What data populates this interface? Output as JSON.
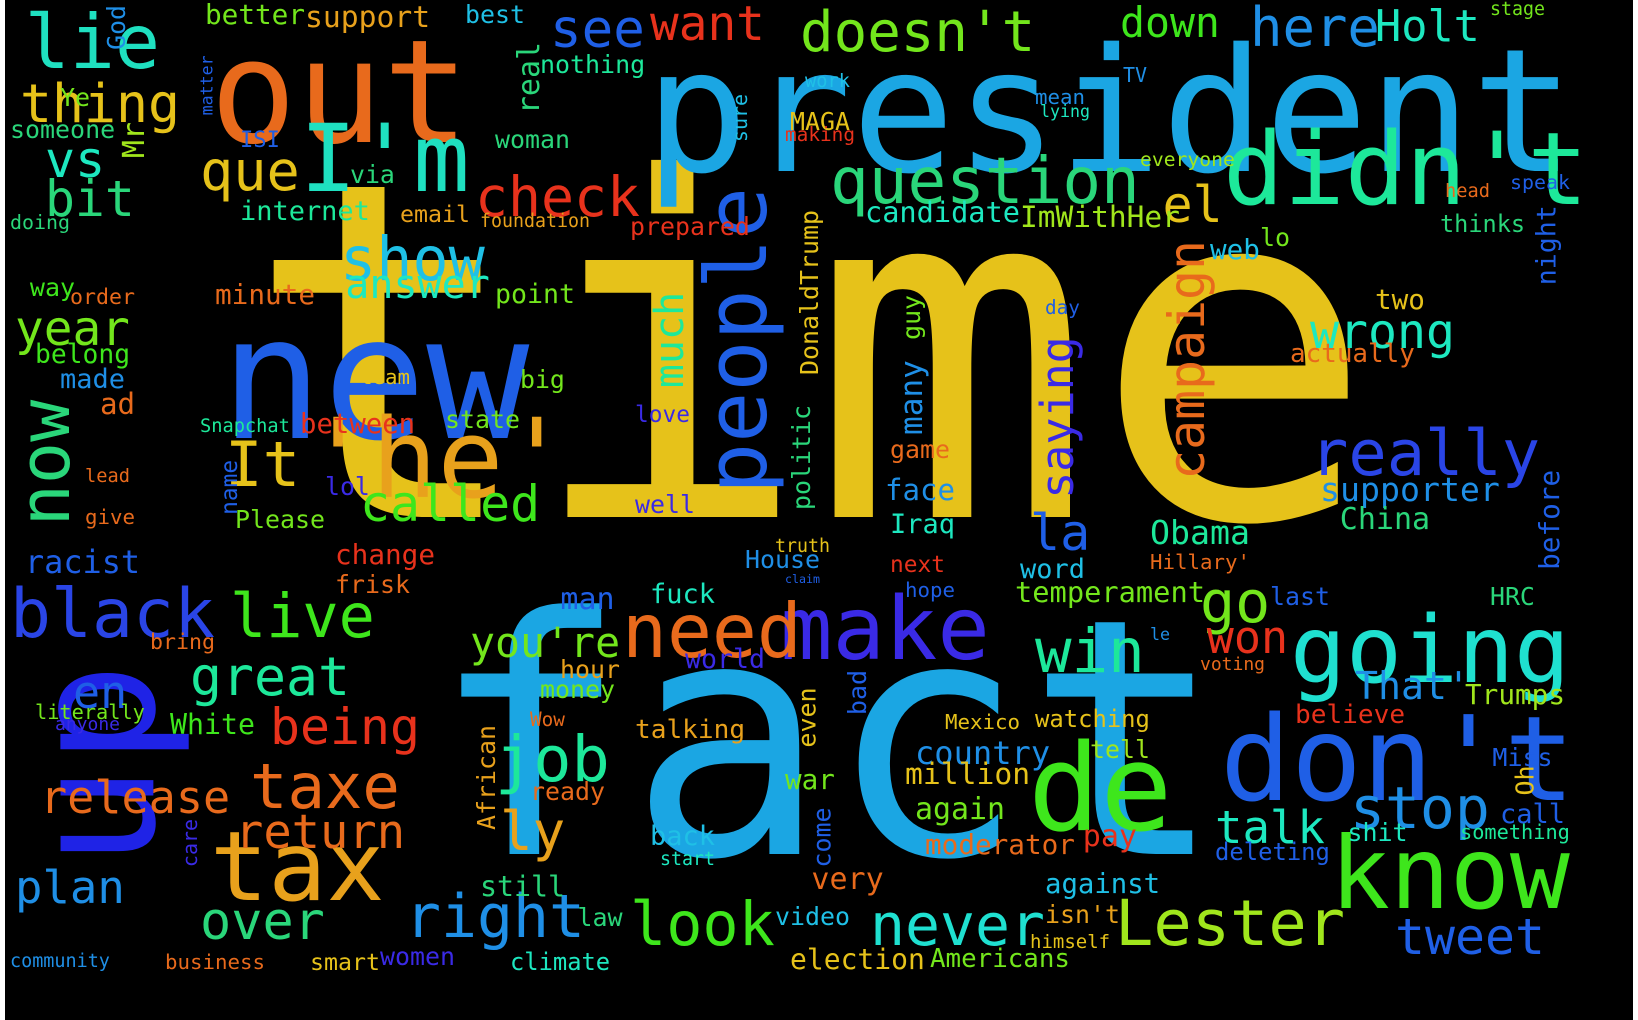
{
  "words": [
    {
      "text": "time",
      "color": "#e6c21a",
      "rotated": false
    },
    {
      "text": "fact",
      "color": "#1ba6e3",
      "rotated": false
    },
    {
      "text": "president",
      "color": "#1ba6e3",
      "rotated": false
    },
    {
      "text": "up",
      "color": "#1f23e6",
      "rotated": true
    },
    {
      "text": "out",
      "color": "#e86a1c",
      "rotated": false
    },
    {
      "text": "new",
      "color": "#1f5fe6",
      "rotated": false
    },
    {
      "text": "people",
      "color": "#1f5fe6",
      "rotated": true
    },
    {
      "text": "It",
      "color": "#e6c21a",
      "rotated": false
    },
    {
      "text": "'he'",
      "color": "#e8a11c",
      "rotated": false
    },
    {
      "text": "don't",
      "color": "#1f5fe6",
      "rotated": false
    },
    {
      "text": "know",
      "color": "#3ee61c",
      "rotated": false
    },
    {
      "text": "tax",
      "color": "#e8a11c",
      "rotated": false
    },
    {
      "text": "make",
      "color": "#3a2ae6",
      "rotated": false
    },
    {
      "text": "going",
      "color": "#1fe0d0",
      "rotated": false
    },
    {
      "text": "de",
      "color": "#3ee61c",
      "rotated": false
    },
    {
      "text": "didn't",
      "color": "#1de89a",
      "rotated": false
    },
    {
      "text": "question",
      "color": "#2ad67a",
      "rotated": false
    },
    {
      "text": "doesn't",
      "color": "#73e61c",
      "rotated": false
    },
    {
      "text": "I'm",
      "color": "#1fe0c0",
      "rotated": false
    },
    {
      "text": "lie",
      "color": "#1fe0c0",
      "rotated": false
    },
    {
      "text": "now",
      "color": "#2ad67a",
      "rotated": true
    },
    {
      "text": "black",
      "color": "#2a45e6",
      "rotated": false
    },
    {
      "text": "need",
      "color": "#e86a1c",
      "rotated": false
    },
    {
      "text": "Lester",
      "color": "#a0e61c",
      "rotated": false
    },
    {
      "text": "never",
      "color": "#1fe0d0",
      "rotated": false
    },
    {
      "text": "right",
      "color": "#1f8fe6",
      "rotated": false
    },
    {
      "text": "look",
      "color": "#3ee61c",
      "rotated": false
    },
    {
      "text": "taxe",
      "color": "#e86a1c",
      "rotated": false
    },
    {
      "text": "tweet",
      "color": "#1f5fe6",
      "rotated": false
    },
    {
      "text": "really",
      "color": "#2a45e6",
      "rotated": false
    },
    {
      "text": "campaign",
      "color": "#e86a1c",
      "rotated": true
    },
    {
      "text": "check",
      "color": "#e8321c",
      "rotated": false
    },
    {
      "text": "show",
      "color": "#1fc0e6",
      "rotated": false
    },
    {
      "text": "live",
      "color": "#3ee61c",
      "rotated": false
    },
    {
      "text": "great",
      "color": "#1de89a",
      "rotated": false
    },
    {
      "text": "job",
      "color": "#1de89a",
      "rotated": false
    },
    {
      "text": "win",
      "color": "#1de89a",
      "rotated": false
    },
    {
      "text": "stop",
      "color": "#1f8fe6",
      "rotated": false
    },
    {
      "text": "over",
      "color": "#2ad67a",
      "rotated": false
    },
    {
      "text": "go",
      "color": "#73e61c",
      "rotated": false
    },
    {
      "text": "wrong",
      "color": "#1de8c0",
      "rotated": false
    },
    {
      "text": "called",
      "color": "#3ee61c",
      "rotated": false
    },
    {
      "text": "want",
      "color": "#e8321c",
      "rotated": false
    },
    {
      "text": "see",
      "color": "#1f5fe6",
      "rotated": false
    },
    {
      "text": "here",
      "color": "#1f8fe6",
      "rotated": false
    },
    {
      "text": "Holt",
      "color": "#1de8c0",
      "rotated": false
    },
    {
      "text": "down",
      "color": "#3ee61c",
      "rotated": false
    },
    {
      "text": "thing",
      "color": "#e6c21a",
      "rotated": false
    },
    {
      "text": "que",
      "color": "#e6c21a",
      "rotated": false
    },
    {
      "text": "vs",
      "color": "#1de8c0",
      "rotated": false
    },
    {
      "text": "bit",
      "color": "#2ad67a",
      "rotated": false
    },
    {
      "text": "year",
      "color": "#73e61c",
      "rotated": false
    },
    {
      "text": "release",
      "color": "#e86a1c",
      "rotated": false
    },
    {
      "text": "return",
      "color": "#e86a1c",
      "rotated": false
    },
    {
      "text": "being",
      "color": "#e8321c",
      "rotated": false
    },
    {
      "text": "plan",
      "color": "#1f8fe6",
      "rotated": false
    },
    {
      "text": "answer",
      "color": "#1de8c0",
      "rotated": false
    },
    {
      "text": "saying",
      "color": "#3a2ae6",
      "rotated": true
    },
    {
      "text": "much",
      "color": "#1de89a",
      "rotated": true
    },
    {
      "text": "real",
      "color": "#2ad67a",
      "rotated": true
    },
    {
      "text": "el",
      "color": "#e6c21a",
      "rotated": false
    },
    {
      "text": "la",
      "color": "#1f5fe6",
      "rotated": false
    },
    {
      "text": "you're",
      "color": "#73e61c",
      "rotated": false
    },
    {
      "text": "talk",
      "color": "#1de8c0",
      "rotated": false
    },
    {
      "text": "ly",
      "color": "#e8a11c",
      "rotated": false
    },
    {
      "text": "That'",
      "color": "#1f8fe6",
      "rotated": false
    },
    {
      "text": "supporter",
      "color": "#1f8fe6",
      "rotated": false
    },
    {
      "text": "en",
      "color": "#1f5fe6",
      "rotated": false
    },
    {
      "text": "won",
      "color": "#e8321c",
      "rotated": false
    },
    {
      "text": "talking",
      "color": "#e8a11c",
      "rotated": false
    },
    {
      "text": "Obama",
      "color": "#1de89a",
      "rotated": false
    },
    {
      "text": "country",
      "color": "#1f8fe6",
      "rotated": false
    },
    {
      "text": "still",
      "color": "#2ad67a",
      "rotated": false
    },
    {
      "text": "candidate",
      "color": "#1de8c0",
      "rotated": false
    },
    {
      "text": "ImWithHer",
      "color": "#a0e61c",
      "rotated": false
    },
    {
      "text": "temperament",
      "color": "#73e61c",
      "rotated": false
    },
    {
      "text": "internet",
      "color": "#1de89a",
      "rotated": false
    },
    {
      "text": "better",
      "color": "#73e61c",
      "rotated": false
    },
    {
      "text": "support",
      "color": "#e8a11c",
      "rotated": false
    },
    {
      "text": "best",
      "color": "#1fc0e6",
      "rotated": false
    },
    {
      "text": "nothing",
      "color": "#1de89a",
      "rotated": false
    },
    {
      "text": "someone",
      "color": "#2ad67a",
      "rotated": false
    },
    {
      "text": "Ye",
      "color": "#73e61c",
      "rotated": false
    },
    {
      "text": "God",
      "color": "#1f8fe6",
      "rotated": true
    },
    {
      "text": "matter",
      "color": "#1f5fe6",
      "rotated": true
    },
    {
      "text": "Mr",
      "color": "#a0e61c",
      "rotated": true
    },
    {
      "text": "ISI",
      "color": "#1f5fe6",
      "rotated": false
    },
    {
      "text": "via",
      "color": "#2ad67a",
      "rotated": false
    },
    {
      "text": "woman",
      "color": "#2ad67a",
      "rotated": false
    },
    {
      "text": "email",
      "color": "#e8a11c",
      "rotated": false
    },
    {
      "text": "foundation",
      "color": "#e8a11c",
      "rotated": false
    },
    {
      "text": "doing",
      "color": "#2ad67a",
      "rotated": false
    },
    {
      "text": "way",
      "color": "#3ee61c",
      "rotated": false
    },
    {
      "text": "order",
      "color": "#e86a1c",
      "rotated": false
    },
    {
      "text": "minute",
      "color": "#e86a1c",
      "rotated": false
    },
    {
      "text": "point",
      "color": "#73e61c",
      "rotated": false
    },
    {
      "text": "belong",
      "color": "#3ee61c",
      "rotated": false
    },
    {
      "text": "made",
      "color": "#1f8fe6",
      "rotated": false
    },
    {
      "text": "team",
      "color": "#e6c21a",
      "rotated": false
    },
    {
      "text": "big",
      "color": "#73e61c",
      "rotated": false
    },
    {
      "text": "ad",
      "color": "#e86a1c",
      "rotated": false
    },
    {
      "text": "Snapchat",
      "color": "#1de89a",
      "rotated": false
    },
    {
      "text": "between",
      "color": "#e8321c",
      "rotated": false
    },
    {
      "text": "state",
      "color": "#73e61c",
      "rotated": false
    },
    {
      "text": "love",
      "color": "#3a2ae6",
      "rotated": false
    },
    {
      "text": "lead",
      "color": "#e86a1c",
      "rotated": false
    },
    {
      "text": "name",
      "color": "#1f5fe6",
      "rotated": true
    },
    {
      "text": "lol",
      "color": "#3a2ae6",
      "rotated": false
    },
    {
      "text": "Please",
      "color": "#73e61c",
      "rotated": false
    },
    {
      "text": "give",
      "color": "#e86a1c",
      "rotated": false
    },
    {
      "text": "well",
      "color": "#3a2ae6",
      "rotated": false
    },
    {
      "text": "racist",
      "color": "#1f5fe6",
      "rotated": false
    },
    {
      "text": "change",
      "color": "#e8321c",
      "rotated": false
    },
    {
      "text": "frisk",
      "color": "#e86a1c",
      "rotated": false
    },
    {
      "text": "bring",
      "color": "#e86a1c",
      "rotated": false
    },
    {
      "text": "man",
      "color": "#1f5fe6",
      "rotated": false
    },
    {
      "text": "fuck",
      "color": "#1de8c0",
      "rotated": false
    },
    {
      "text": "hour",
      "color": "#e8a11c",
      "rotated": false
    },
    {
      "text": "world",
      "color": "#3a2ae6",
      "rotated": false
    },
    {
      "text": "money",
      "color": "#73e61c",
      "rotated": false
    },
    {
      "text": "literally",
      "color": "#73e61c",
      "rotated": false
    },
    {
      "text": "anyone",
      "color": "#3a2ae6",
      "rotated": false
    },
    {
      "text": "White",
      "color": "#3ee61c",
      "rotated": false
    },
    {
      "text": "Wow",
      "color": "#e86a1c",
      "rotated": false
    },
    {
      "text": "ready",
      "color": "#e86a1c",
      "rotated": false
    },
    {
      "text": "African",
      "color": "#e8a11c",
      "rotated": true
    },
    {
      "text": "war",
      "color": "#73e61c",
      "rotated": false
    },
    {
      "text": "even",
      "color": "#e6c21a",
      "rotated": true
    },
    {
      "text": "care",
      "color": "#3a2ae6",
      "rotated": true
    },
    {
      "text": "come",
      "color": "#1f5fe6",
      "rotated": true
    },
    {
      "text": "back",
      "color": "#1fc0e6",
      "rotated": false
    },
    {
      "text": "start",
      "color": "#1de8c0",
      "rotated": false
    },
    {
      "text": "very",
      "color": "#e86a1c",
      "rotated": false
    },
    {
      "text": "video",
      "color": "#1fc0e6",
      "rotated": false
    },
    {
      "text": "law",
      "color": "#2ad67a",
      "rotated": false
    },
    {
      "text": "women",
      "color": "#3a2ae6",
      "rotated": false
    },
    {
      "text": "smart",
      "color": "#e6c21a",
      "rotated": false
    },
    {
      "text": "business",
      "color": "#e86a1c",
      "rotated": false
    },
    {
      "text": "climate",
      "color": "#1de8c0",
      "rotated": false
    },
    {
      "text": "election",
      "color": "#e6c21a",
      "rotated": false
    },
    {
      "text": "Americans",
      "color": "#73e61c",
      "rotated": false
    },
    {
      "text": "community",
      "color": "#1f8fe6",
      "rotated": false
    },
    {
      "text": "sure",
      "color": "#1fc0e6",
      "rotated": true
    },
    {
      "text": "MAGA",
      "color": "#e6c21a",
      "rotated": false
    },
    {
      "text": "making",
      "color": "#e8321c",
      "rotated": false
    },
    {
      "text": "work",
      "color": "#1fc0e6",
      "rotated": false
    },
    {
      "text": "TV",
      "color": "#1f8fe6",
      "rotated": false
    },
    {
      "text": "mean",
      "color": "#1f8fe6",
      "rotated": false
    },
    {
      "text": "lying",
      "color": "#1de8c0",
      "rotated": false
    },
    {
      "text": "everyone",
      "color": "#a0e61c",
      "rotated": false
    },
    {
      "text": "stage",
      "color": "#73e61c",
      "rotated": false
    },
    {
      "text": "head",
      "color": "#e86a1c",
      "rotated": false
    },
    {
      "text": "speak",
      "color": "#1f5fe6",
      "rotated": false
    },
    {
      "text": "thinks",
      "color": "#2ad67a",
      "rotated": false
    },
    {
      "text": "night",
      "color": "#1f5fe6",
      "rotated": true
    },
    {
      "text": "web",
      "color": "#1fc0e6",
      "rotated": false
    },
    {
      "text": "lo",
      "color": "#73e61c",
      "rotated": false
    },
    {
      "text": "prepared",
      "color": "#e8321c",
      "rotated": false
    },
    {
      "text": "DonaldTrump",
      "color": "#e6c21a",
      "rotated": true
    },
    {
      "text": "guy",
      "color": "#73e61c",
      "rotated": true
    },
    {
      "text": "many",
      "color": "#1f8fe6",
      "rotated": true
    },
    {
      "text": "politic",
      "color": "#2ad67a",
      "rotated": true
    },
    {
      "text": "day",
      "color": "#1f5fe6",
      "rotated": false
    },
    {
      "text": "two",
      "color": "#e6c21a",
      "rotated": false
    },
    {
      "text": "actually",
      "color": "#e86a1c",
      "rotated": false
    },
    {
      "text": "game",
      "color": "#e86a1c",
      "rotated": false
    },
    {
      "text": "face",
      "color": "#1f8fe6",
      "rotated": false
    },
    {
      "text": "Iraq",
      "color": "#1de8c0",
      "rotated": false
    },
    {
      "text": "China",
      "color": "#2ad67a",
      "rotated": false
    },
    {
      "text": "before",
      "color": "#1f5fe6",
      "rotated": true
    },
    {
      "text": "truth",
      "color": "#e6c21a",
      "rotated": false
    },
    {
      "text": "House",
      "color": "#1f8fe6",
      "rotated": false
    },
    {
      "text": "claim",
      "color": "#1f5fe6",
      "rotated": false
    },
    {
      "text": "next",
      "color": "#e8321c",
      "rotated": false
    },
    {
      "text": "hope",
      "color": "#1f5fe6",
      "rotated": false
    },
    {
      "text": "word",
      "color": "#1fc0e6",
      "rotated": false
    },
    {
      "text": "Hillary'",
      "color": "#e86a1c",
      "rotated": false
    },
    {
      "text": "last",
      "color": "#1f5fe6",
      "rotated": false
    },
    {
      "text": "HRC",
      "color": "#2ad67a",
      "rotated": false
    },
    {
      "text": "le",
      "color": "#1f8fe6",
      "rotated": false
    },
    {
      "text": "voting",
      "color": "#e86a1c",
      "rotated": false
    },
    {
      "text": "Trumps",
      "color": "#a0e61c",
      "rotated": false
    },
    {
      "text": "believe",
      "color": "#e8321c",
      "rotated": false
    },
    {
      "text": "bad",
      "color": "#1f5fe6",
      "rotated": true
    },
    {
      "text": "Mexico",
      "color": "#e6c21a",
      "rotated": false
    },
    {
      "text": "watching",
      "color": "#e6c21a",
      "rotated": false
    },
    {
      "text": "tell",
      "color": "#a0e61c",
      "rotated": false
    },
    {
      "text": "million",
      "color": "#e6c21a",
      "rotated": false
    },
    {
      "text": "again",
      "color": "#73e61c",
      "rotated": false
    },
    {
      "text": "Miss",
      "color": "#1f5fe6",
      "rotated": false
    },
    {
      "text": "Oh",
      "color": "#e6c21a",
      "rotated": true
    },
    {
      "text": "call",
      "color": "#1f5fe6",
      "rotated": false
    },
    {
      "text": "something",
      "color": "#1de89a",
      "rotated": false
    },
    {
      "text": "shit",
      "color": "#1de8c0",
      "rotated": false
    },
    {
      "text": "moderator",
      "color": "#e86a1c",
      "rotated": false
    },
    {
      "text": "pay",
      "color": "#e8321c",
      "rotated": false
    },
    {
      "text": "deleting",
      "color": "#1f5fe6",
      "rotated": false
    },
    {
      "text": "against",
      "color": "#1fc0e6",
      "rotated": false
    },
    {
      "text": "isn't",
      "color": "#e8a11c",
      "rotated": false
    },
    {
      "text": "himself",
      "color": "#e6c21a",
      "rotated": false
    }
  ]
}
